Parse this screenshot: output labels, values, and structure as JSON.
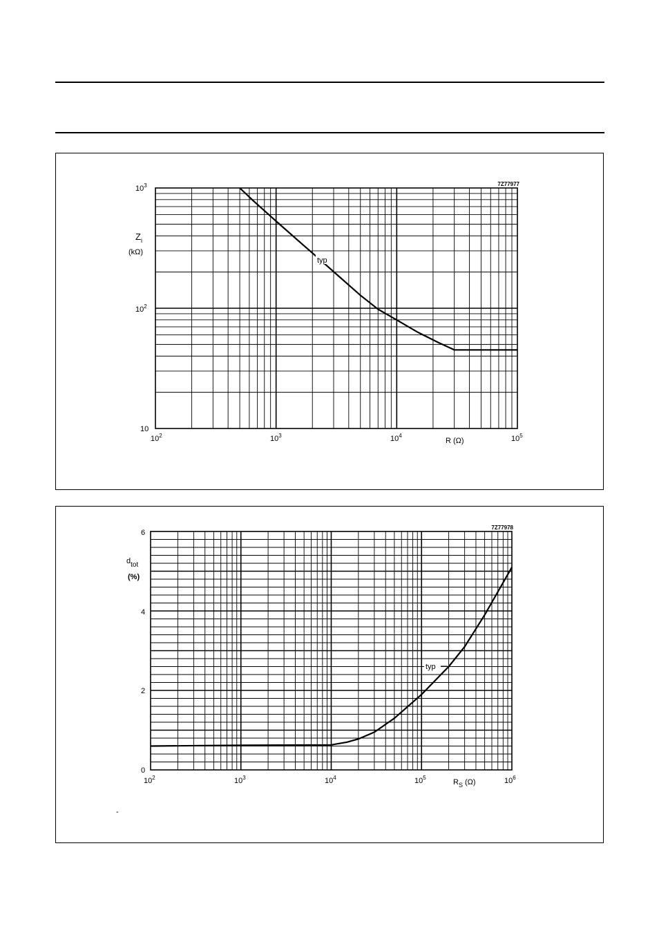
{
  "page": {
    "rules": 2,
    "dash_mark": "-"
  },
  "chart_data": [
    {
      "type": "line",
      "code": "7Z77977",
      "ylabel": "Z",
      "ylabel_sub": "i",
      "yunit": "(kΩ)",
      "xlabel": "R (Ω)",
      "xscale": "log",
      "yscale": "log",
      "xlim": [
        100,
        100000
      ],
      "ylim": [
        10,
        1000
      ],
      "x_ticks": [
        {
          "base": "10",
          "exp": "2",
          "value": 100
        },
        {
          "base": "10",
          "exp": "3",
          "value": 1000
        },
        {
          "base": "10",
          "exp": "4",
          "value": 10000
        },
        {
          "base": "10",
          "exp": "5",
          "value": 100000
        }
      ],
      "y_ticks": [
        {
          "base": "10",
          "exp": "",
          "value": 10
        },
        {
          "base": "10",
          "exp": "2",
          "value": 100
        },
        {
          "base": "10",
          "exp": "3",
          "value": 1000
        }
      ],
      "grid": true,
      "series": [
        {
          "name": "typ",
          "x": [
            500,
            650,
            1000,
            1500,
            2200,
            3300,
            5000,
            7000,
            10000,
            15000,
            22000,
            30000,
            50000,
            100000
          ],
          "y": [
            1000,
            780,
            530,
            370,
            265,
            185,
            128,
            98,
            80,
            63,
            52,
            45,
            45,
            45
          ]
        }
      ]
    },
    {
      "type": "line",
      "code": "7Z77978",
      "ylabel": "d",
      "ylabel_sub": "tot",
      "yunit": "(%)",
      "xlabel": "R",
      "xlabel_sub": "S",
      "xlabel_unit": "(Ω)",
      "xscale": "log",
      "yscale": "linear",
      "xlim": [
        100,
        1000000
      ],
      "ylim": [
        0,
        6
      ],
      "x_ticks": [
        {
          "base": "10",
          "exp": "2",
          "value": 100
        },
        {
          "base": "10",
          "exp": "3",
          "value": 1000
        },
        {
          "base": "10",
          "exp": "4",
          "value": 10000
        },
        {
          "base": "10",
          "exp": "5",
          "value": 100000
        },
        {
          "base": "10",
          "exp": "6",
          "value": 1000000
        }
      ],
      "y_ticks": [
        {
          "label": "0",
          "value": 0
        },
        {
          "label": "2",
          "value": 2
        },
        {
          "label": "4",
          "value": 4
        },
        {
          "label": "6",
          "value": 6
        }
      ],
      "grid": true,
      "series": [
        {
          "name": "typ",
          "x": [
            100,
            1000,
            10000,
            15000,
            20000,
            30000,
            50000,
            100000,
            200000,
            300000,
            500000,
            1000000
          ],
          "y": [
            0.6,
            0.62,
            0.63,
            0.7,
            0.78,
            0.95,
            1.3,
            1.9,
            2.6,
            3.1,
            3.9,
            5.1
          ]
        }
      ]
    }
  ]
}
